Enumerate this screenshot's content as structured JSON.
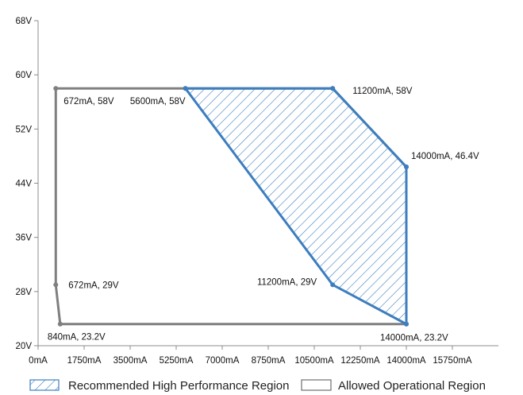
{
  "chart_data": {
    "type": "area",
    "title": "",
    "xlabel": "",
    "ylabel": "",
    "x_unit": "mA",
    "y_unit": "V",
    "xlim": [
      0,
      17500
    ],
    "ylim": [
      20,
      68
    ],
    "x_ticks": [
      0,
      1750,
      3500,
      5250,
      7000,
      8750,
      10500,
      12250,
      14000,
      15750
    ],
    "x_tick_labels": [
      "0mA",
      "1750mA",
      "3500mA",
      "5250mA",
      "7000mA",
      "8750mA",
      "10500mA",
      "12250mA",
      "14000mA",
      "15750mA"
    ],
    "y_ticks": [
      20,
      28,
      36,
      44,
      52,
      60,
      68
    ],
    "y_tick_labels": [
      "20V",
      "28V",
      "36V",
      "44V",
      "52V",
      "60V",
      "68V"
    ],
    "grid": false,
    "legend_position": "bottom",
    "series": [
      {
        "name": "Recommended High Performance Region",
        "color": "#3d7ebf",
        "style": "hatched",
        "points": [
          {
            "x": 5600,
            "y": 58
          },
          {
            "x": 11200,
            "y": 58
          },
          {
            "x": 14000,
            "y": 46.4
          },
          {
            "x": 14000,
            "y": 23.2
          },
          {
            "x": 11200,
            "y": 29
          }
        ]
      },
      {
        "name": "Allowed Operational Region",
        "color": "#7f7f7f",
        "style": "outline",
        "points": [
          {
            "x": 672,
            "y": 58
          },
          {
            "x": 5600,
            "y": 58
          },
          {
            "x": 11200,
            "y": 58
          },
          {
            "x": 14000,
            "y": 46.4
          },
          {
            "x": 14000,
            "y": 23.2
          },
          {
            "x": 840,
            "y": 23.2
          },
          {
            "x": 672,
            "y": 29
          }
        ]
      }
    ],
    "annotations": [
      {
        "text": "672mA, 58V",
        "x": 672,
        "y": 58
      },
      {
        "text": "5600mA, 58V",
        "x": 5600,
        "y": 58
      },
      {
        "text": "11200mA, 58V",
        "x": 11200,
        "y": 58
      },
      {
        "text": "14000mA, 46.4V",
        "x": 14000,
        "y": 46.4
      },
      {
        "text": "672mA, 29V",
        "x": 672,
        "y": 29
      },
      {
        "text": "11200mA, 29V",
        "x": 11200,
        "y": 29
      },
      {
        "text": "840mA, 23.2V",
        "x": 840,
        "y": 23.2
      },
      {
        "text": "14000mA, 23.2V",
        "x": 14000,
        "y": 23.2
      }
    ]
  }
}
